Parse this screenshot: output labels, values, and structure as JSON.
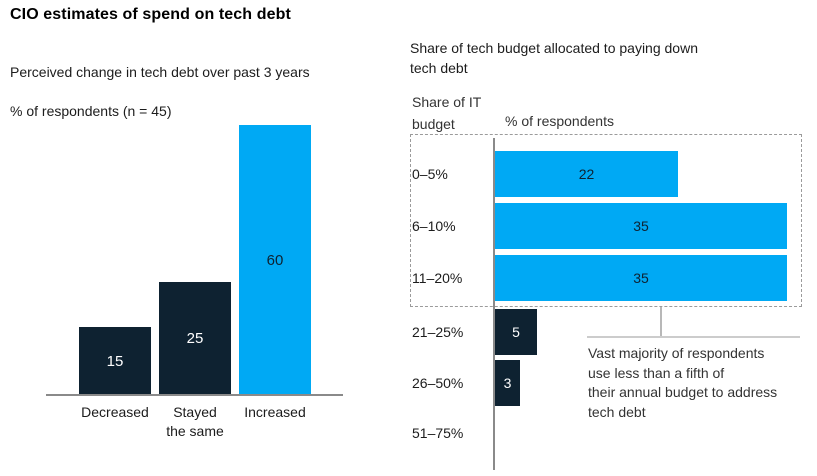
{
  "title": "CIO estimates of spend on tech debt",
  "palette": {
    "cyan": "#00A9F4",
    "navy": "#0E2231",
    "axis_gray": "#8A8A8A",
    "dash_gray": "#9B9B9B",
    "callout_gray": "#CCCCCC",
    "text_dark": "#1C1C1C",
    "text_muted": "#333333"
  },
  "chart_data": [
    {
      "type": "bar",
      "orientation": "vertical",
      "title": "Perceived change in tech debt over past 3 years",
      "subtitle": "% of respondents (n = 45)",
      "categories": [
        "Decreased",
        "Stayed the same",
        "Increased"
      ],
      "labels": [
        "Decreased",
        "Stayed\nthe same",
        "Increased"
      ],
      "values": [
        15,
        25,
        60
      ],
      "bar_colors": [
        "navy",
        "navy",
        "cyan"
      ],
      "ylim": [
        0,
        60
      ],
      "grid": false,
      "legend": "none"
    },
    {
      "type": "bar",
      "orientation": "horizontal",
      "title": "Share of tech budget allocated to paying down\ntech debt",
      "col_header_left": "Share of IT\nbudget",
      "col_header_right": "% of respondents",
      "categories": [
        "0–5%",
        "6–10%",
        "11–20%",
        "21–25%",
        "26–50%",
        "51–75%"
      ],
      "values": [
        22,
        35,
        35,
        5,
        3,
        null
      ],
      "bar_colors": [
        "cyan",
        "cyan",
        "cyan",
        "navy",
        "navy",
        null
      ],
      "xlim": [
        0,
        37
      ],
      "grid": false,
      "legend": "none",
      "highlight_box_rows": [
        0,
        1,
        2
      ],
      "annotation": "Vast majority of respondents\nuse less than a fifth of\ntheir annual budget to address\ntech debt"
    }
  ]
}
